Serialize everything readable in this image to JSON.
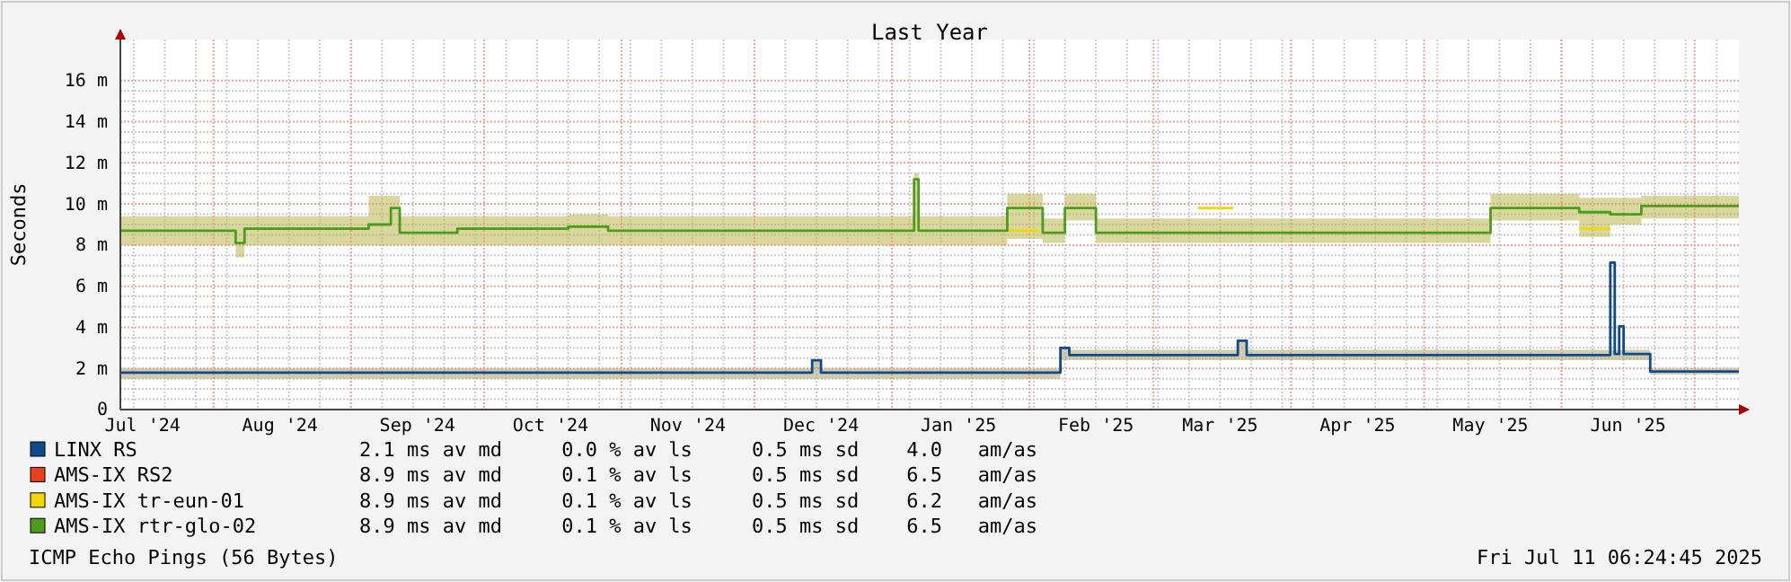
{
  "chart_data": {
    "type": "step",
    "title": "Last Year",
    "ylabel": "Seconds",
    "xlim": [
      "2024-07-11",
      "2025-07-11"
    ],
    "xticks": [
      {
        "value": "2024-07-16",
        "label": "Jul '24"
      },
      {
        "value": "2024-08-01",
        "label": null
      },
      {
        "value": "2024-08-16",
        "label": "Aug '24"
      },
      {
        "value": "2024-09-01",
        "label": null
      },
      {
        "value": "2024-09-16",
        "label": "Sep '24"
      },
      {
        "value": "2024-10-01",
        "label": null
      },
      {
        "value": "2024-10-16",
        "label": "Oct '24"
      },
      {
        "value": "2024-11-01",
        "label": null
      },
      {
        "value": "2024-11-16",
        "label": "Nov '24"
      },
      {
        "value": "2024-12-01",
        "label": null
      },
      {
        "value": "2024-12-16",
        "label": "Dec '24"
      },
      {
        "value": "2025-01-01",
        "label": null
      },
      {
        "value": "2025-01-16",
        "label": "Jan '25"
      },
      {
        "value": "2025-02-01",
        "label": null
      },
      {
        "value": "2025-02-16",
        "label": "Feb '25"
      },
      {
        "value": "2025-03-01",
        "label": null
      },
      {
        "value": "2025-03-16",
        "label": "Mar '25"
      },
      {
        "value": "2025-04-01",
        "label": null
      },
      {
        "value": "2025-04-16",
        "label": "Apr '25"
      },
      {
        "value": "2025-05-01",
        "label": null
      },
      {
        "value": "2025-05-16",
        "label": "May '25"
      },
      {
        "value": "2025-06-01",
        "label": null
      },
      {
        "value": "2025-06-16",
        "label": "Jun '25"
      },
      {
        "value": "2025-07-01",
        "label": null
      }
    ],
    "ylim": [
      0,
      18
    ],
    "yticks": [
      {
        "value": 0,
        "label": "0"
      },
      {
        "value": 2,
        "label": "2 m"
      },
      {
        "value": 4,
        "label": "4 m"
      },
      {
        "value": 6,
        "label": "6 m"
      },
      {
        "value": 8,
        "label": "8 m"
      },
      {
        "value": 10,
        "label": "10 m"
      },
      {
        "value": 12,
        "label": "12 m"
      },
      {
        "value": 14,
        "label": "14 m"
      },
      {
        "value": 16,
        "label": "16 m"
      }
    ],
    "grid": true,
    "legend": "bottom left",
    "series": [
      {
        "name": "LINX RS",
        "color": "#0d4a8e",
        "x": [
          "2024-07-11",
          "2024-12-14",
          "2024-12-16",
          "2025-02-08",
          "2025-02-10",
          "2025-03-20",
          "2025-03-22",
          "2025-06-12",
          "2025-06-13",
          "2025-06-14",
          "2025-06-15",
          "2025-06-21",
          "2025-07-11"
        ],
        "values": [
          1.8,
          2.4,
          1.8,
          3.0,
          2.65,
          3.35,
          2.65,
          7.15,
          2.7,
          4.05,
          2.7,
          1.85,
          1.85
        ],
        "lower": [
          1.5,
          1.5,
          1.5,
          2.4,
          2.4,
          2.4,
          2.4,
          2.4,
          2.4,
          2.4,
          2.4,
          1.7,
          1.7
        ],
        "upper": [
          2.0,
          2.4,
          2.0,
          3.0,
          2.9,
          3.35,
          2.9,
          2.9,
          2.9,
          2.9,
          2.9,
          2.0,
          2.0
        ]
      },
      {
        "name": "AMS-IX RS2",
        "color": "#e8401c",
        "values": [
          null
        ]
      },
      {
        "name": "AMS-IX tr-eun-01",
        "color": "#f0d800",
        "x": [
          "2025-01-27",
          "2025-02-03",
          "2025-02-04",
          "2025-03-11",
          "2025-03-19",
          "2025-03-20",
          "2025-06-05",
          "2025-06-12"
        ],
        "values": [
          8.7,
          8.7,
          null,
          9.8,
          9.8,
          null,
          8.8,
          8.8
        ]
      },
      {
        "name": "AMS-IX rtr-glo-02",
        "color": "#4c9c1c",
        "x": [
          "2024-07-11",
          "2024-08-06",
          "2024-08-08",
          "2024-09-05",
          "2024-09-10",
          "2024-09-12",
          "2024-09-25",
          "2024-10-20",
          "2024-10-29",
          "2025-01-06",
          "2025-01-07",
          "2025-01-27",
          "2025-02-04",
          "2025-02-09",
          "2025-02-16",
          "2025-05-16",
          "2025-06-05",
          "2025-06-12",
          "2025-06-19",
          "2025-07-11"
        ],
        "values": [
          8.7,
          8.1,
          8.8,
          9.0,
          9.8,
          8.6,
          8.8,
          8.9,
          8.7,
          11.2,
          8.7,
          9.8,
          8.6,
          9.8,
          8.6,
          9.8,
          9.6,
          9.5,
          9.9,
          9.9
        ],
        "lower": [
          8.0,
          7.4,
          8.0,
          8.0,
          8.0,
          8.0,
          8.0,
          8.0,
          8.0,
          8.0,
          8.0,
          8.3,
          8.1,
          9.2,
          8.1,
          9.2,
          8.4,
          9.0,
          9.3,
          9.3
        ],
        "upper": [
          9.4,
          9.4,
          9.4,
          10.4,
          10.4,
          9.4,
          9.4,
          9.5,
          9.4,
          11.5,
          9.4,
          10.5,
          9.3,
          10.5,
          9.3,
          10.5,
          10.3,
          10.3,
          10.4,
          10.4
        ]
      }
    ],
    "annotations": [
      "2.1 ms av md     0.0 % av ls     0.5 ms sd    4.0   am/as",
      "8.9 ms av md     0.1 % av ls     0.5 ms sd    6.5   am/as",
      "8.9 ms av md     0.1 % av ls     0.5 ms sd    6.2   am/as",
      "8.9 ms av md     0.1 % av ls     0.5 ms sd    6.5   am/as",
      "ICMP Echo Pings (56 Bytes)",
      "Fri Jul 11 06:24:45 2025"
    ]
  }
}
